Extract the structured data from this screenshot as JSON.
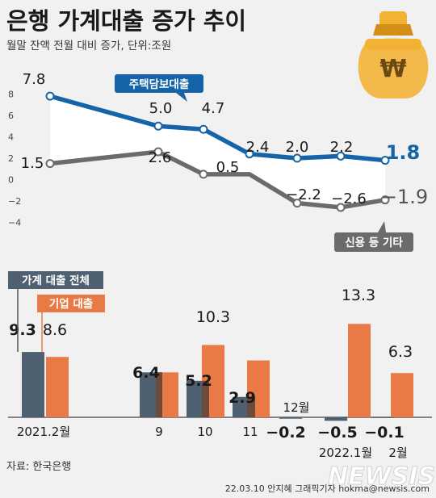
{
  "header": {
    "title": "은행 가계대출 증가 추이",
    "subtitle": "월말 잔액 전월 대비 증가, 단위:조원"
  },
  "footer": {
    "source": "자료: 한국은행",
    "credit": "22.03.10 안지혜 그래픽기자 hokma@newsis.com",
    "watermark": "NEWSIS"
  },
  "colors": {
    "background": "#f1f1f1",
    "mortgage_line": "#1564a8",
    "other_line": "#6b6b6b",
    "household_bar": "#4f6071",
    "corporate_bar": "#ea7a45",
    "money_bag": "#f2b234"
  },
  "icons": [
    "money-bag-icon"
  ],
  "chart_data": [
    {
      "type": "line",
      "title": "",
      "ylim": [
        -4,
        8
      ],
      "yticks": [
        8,
        6,
        4,
        2,
        0,
        -2,
        -4
      ],
      "ytick_labels": [
        "8",
        "6",
        "4",
        "2",
        "0",
        "−2",
        "−4"
      ],
      "x": [
        "2021.2",
        "9",
        "10",
        "11",
        "12",
        "2022.1",
        "2"
      ],
      "series": [
        {
          "name": "주택담보대출",
          "values": [
            7.8,
            5.0,
            4.7,
            2.4,
            2.0,
            2.2,
            1.8
          ],
          "labels": [
            "7.8",
            "5.0",
            "4.7",
            "2.4",
            "2.0",
            "2.2",
            "1.8"
          ]
        },
        {
          "name": "신용 등 기타",
          "values": [
            1.5,
            2.6,
            0.5,
            0.5,
            -2.2,
            -2.6,
            -1.9
          ],
          "labels": [
            "1.5",
            "2.6",
            "0.5",
            "",
            "−2.2",
            "−2.6",
            "−1.9"
          ]
        }
      ]
    },
    {
      "type": "bar",
      "categories": [
        "2021.2월",
        "9",
        "10",
        "11",
        "12월",
        "2022.1월",
        "2월"
      ],
      "series": [
        {
          "name": "가계 대출 전체",
          "values": [
            9.3,
            6.4,
            5.2,
            2.9,
            -0.2,
            -0.5,
            -0.1
          ],
          "labels": [
            "9.3",
            "6.4",
            "5.2",
            "2.9",
            "−0.2",
            "−0.5",
            "−0.1"
          ]
        },
        {
          "name": "기업 대출",
          "values": [
            8.6,
            6.4,
            10.3,
            8.1,
            0,
            13.3,
            6.3
          ],
          "labels": [
            "8.6",
            "",
            "10.3",
            "",
            "",
            "13.3",
            "6.3"
          ]
        }
      ]
    }
  ]
}
